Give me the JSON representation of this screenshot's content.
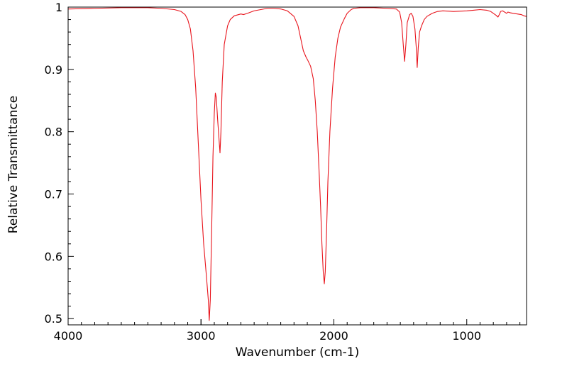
{
  "chart_data": {
    "type": "line",
    "xlabel": "Wavenumber (cm-1)",
    "ylabel": "Relative Transmittance",
    "xlim": [
      4000,
      550
    ],
    "ylim": [
      0.49,
      1.0
    ],
    "x_reversed": true,
    "grid": false,
    "legend": "none",
    "x_ticks": [
      {
        "value": 4000,
        "label": "4000"
      },
      {
        "value": 3000,
        "label": "3000"
      },
      {
        "value": 2000,
        "label": "2000"
      },
      {
        "value": 1000,
        "label": "1000"
      }
    ],
    "y_ticks": [
      {
        "value": 1.0,
        "label": "1"
      },
      {
        "value": 0.9,
        "label": "0.9"
      },
      {
        "value": 0.8,
        "label": "0.8"
      },
      {
        "value": 0.7,
        "label": "0.7"
      },
      {
        "value": 0.6,
        "label": "0.6"
      },
      {
        "value": 0.5,
        "label": "0.5"
      }
    ],
    "series": [
      {
        "color": "#e8141c",
        "points": [
          [
            4000,
            0.997
          ],
          [
            3800,
            0.998
          ],
          [
            3600,
            0.999
          ],
          [
            3400,
            0.999
          ],
          [
            3300,
            0.998
          ],
          [
            3200,
            0.996
          ],
          [
            3150,
            0.993
          ],
          [
            3120,
            0.988
          ],
          [
            3100,
            0.98
          ],
          [
            3080,
            0.965
          ],
          [
            3060,
            0.93
          ],
          [
            3040,
            0.87
          ],
          [
            3020,
            0.78
          ],
          [
            3000,
            0.69
          ],
          [
            2980,
            0.62
          ],
          [
            2960,
            0.57
          ],
          [
            2945,
            0.53
          ],
          [
            2938,
            0.497
          ],
          [
            2930,
            0.53
          ],
          [
            2920,
            0.64
          ],
          [
            2910,
            0.76
          ],
          [
            2900,
            0.83
          ],
          [
            2892,
            0.862
          ],
          [
            2885,
            0.855
          ],
          [
            2875,
            0.82
          ],
          [
            2865,
            0.79
          ],
          [
            2857,
            0.766
          ],
          [
            2850,
            0.8
          ],
          [
            2840,
            0.88
          ],
          [
            2825,
            0.94
          ],
          [
            2800,
            0.97
          ],
          [
            2780,
            0.98
          ],
          [
            2750,
            0.986
          ],
          [
            2700,
            0.989
          ],
          [
            2680,
            0.988
          ],
          [
            2650,
            0.99
          ],
          [
            2600,
            0.994
          ],
          [
            2550,
            0.996
          ],
          [
            2500,
            0.998
          ],
          [
            2450,
            0.998
          ],
          [
            2400,
            0.997
          ],
          [
            2350,
            0.994
          ],
          [
            2300,
            0.985
          ],
          [
            2270,
            0.97
          ],
          [
            2250,
            0.95
          ],
          [
            2230,
            0.93
          ],
          [
            2210,
            0.92
          ],
          [
            2195,
            0.914
          ],
          [
            2175,
            0.905
          ],
          [
            2155,
            0.885
          ],
          [
            2140,
            0.85
          ],
          [
            2125,
            0.8
          ],
          [
            2110,
            0.73
          ],
          [
            2100,
            0.68
          ],
          [
            2090,
            0.62
          ],
          [
            2080,
            0.575
          ],
          [
            2072,
            0.556
          ],
          [
            2065,
            0.575
          ],
          [
            2055,
            0.64
          ],
          [
            2045,
            0.72
          ],
          [
            2030,
            0.8
          ],
          [
            2010,
            0.87
          ],
          [
            1990,
            0.92
          ],
          [
            1970,
            0.95
          ],
          [
            1950,
            0.968
          ],
          [
            1920,
            0.982
          ],
          [
            1900,
            0.99
          ],
          [
            1870,
            0.996
          ],
          [
            1850,
            0.998
          ],
          [
            1800,
            0.999
          ],
          [
            1700,
            0.999
          ],
          [
            1600,
            0.998
          ],
          [
            1530,
            0.997
          ],
          [
            1505,
            0.992
          ],
          [
            1490,
            0.975
          ],
          [
            1478,
            0.94
          ],
          [
            1468,
            0.913
          ],
          [
            1458,
            0.94
          ],
          [
            1448,
            0.975
          ],
          [
            1430,
            0.988
          ],
          [
            1418,
            0.99
          ],
          [
            1405,
            0.985
          ],
          [
            1390,
            0.965
          ],
          [
            1380,
            0.935
          ],
          [
            1373,
            0.903
          ],
          [
            1365,
            0.935
          ],
          [
            1355,
            0.96
          ],
          [
            1340,
            0.97
          ],
          [
            1320,
            0.98
          ],
          [
            1300,
            0.985
          ],
          [
            1260,
            0.99
          ],
          [
            1220,
            0.993
          ],
          [
            1180,
            0.994
          ],
          [
            1100,
            0.993
          ],
          [
            1000,
            0.994
          ],
          [
            950,
            0.995
          ],
          [
            900,
            0.996
          ],
          [
            850,
            0.995
          ],
          [
            820,
            0.993
          ],
          [
            800,
            0.99
          ],
          [
            780,
            0.987
          ],
          [
            765,
            0.984
          ],
          [
            755,
            0.988
          ],
          [
            745,
            0.993
          ],
          [
            730,
            0.994
          ],
          [
            715,
            0.992
          ],
          [
            700,
            0.99
          ],
          [
            690,
            0.992
          ],
          [
            675,
            0.991
          ],
          [
            650,
            0.99
          ],
          [
            620,
            0.989
          ],
          [
            590,
            0.988
          ],
          [
            570,
            0.986
          ],
          [
            550,
            0.985
          ]
        ]
      }
    ]
  }
}
